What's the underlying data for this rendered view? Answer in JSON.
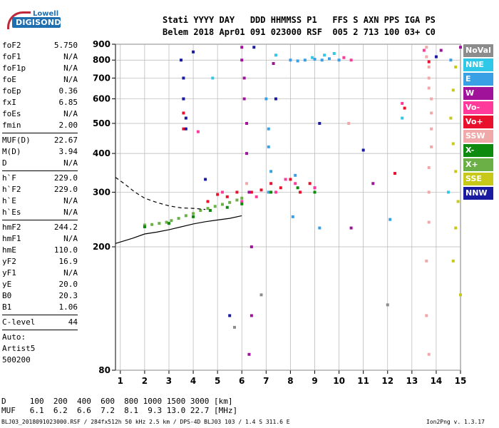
{
  "logo": {
    "line1": "Lowell",
    "line2": "DIGISONDE"
  },
  "header": {
    "line1": "Stati YYYY DAY   DDD HHMMSS P1   FFS S AXN PPS IGA PS",
    "line2": "Belem 2018 Apr01 091 023000 RSF  005 2 713 100 03+ C0"
  },
  "params_group1": [
    {
      "label": "foF2",
      "value": "5.750"
    },
    {
      "label": "foF1",
      "value": "N/A"
    },
    {
      "label": "foF1p",
      "value": "N/A"
    },
    {
      "label": "foE",
      "value": "N/A"
    },
    {
      "label": "foEp",
      "value": "0.36"
    },
    {
      "label": "fxI",
      "value": "6.85"
    },
    {
      "label": "foEs",
      "value": "N/A"
    },
    {
      "label": "fmin",
      "value": "2.00"
    }
  ],
  "params_group2": [
    {
      "label": "MUF(D)",
      "value": "22.67"
    },
    {
      "label": "M(D)",
      "value": "3.94"
    },
    {
      "label": "D",
      "value": "N/A"
    }
  ],
  "params_group3": [
    {
      "label": "h`F",
      "value": "229.0"
    },
    {
      "label": "h`F2",
      "value": "229.0"
    },
    {
      "label": "h`E",
      "value": "N/A"
    },
    {
      "label": "h`Es",
      "value": "N/A"
    }
  ],
  "params_group4": [
    {
      "label": "hmF2",
      "value": "244.2"
    },
    {
      "label": "hmF1",
      "value": "N/A"
    },
    {
      "label": "hmE",
      "value": "110.0"
    },
    {
      "label": "yF2",
      "value": "16.9"
    },
    {
      "label": "yF1",
      "value": "N/A"
    },
    {
      "label": "yE",
      "value": "20.0"
    },
    {
      "label": "B0",
      "value": "20.3"
    },
    {
      "label": "B1",
      "value": "1.06"
    }
  ],
  "clevel": {
    "label": "C-level",
    "value": "44"
  },
  "auto": [
    "Auto:",
    "Artist5",
    "500200"
  ],
  "legend": [
    {
      "label": "NoVal",
      "color": "#8c8c8c"
    },
    {
      "label": "NNE",
      "color": "#2fc8e8"
    },
    {
      "label": "E",
      "color": "#3aa0e6"
    },
    {
      "label": "W",
      "color": "#a0129a"
    },
    {
      "label": "Vo-",
      "color": "#ff3a9a"
    },
    {
      "label": "Vo+",
      "color": "#e8102c"
    },
    {
      "label": "SSW",
      "color": "#f0a8a8"
    },
    {
      "label": "X-",
      "color": "#0e8a0e"
    },
    {
      "label": "X+",
      "color": "#6ab046"
    },
    {
      "label": "SSE",
      "color": "#c8c818"
    },
    {
      "label": "NNW",
      "color": "#1a1aa0"
    }
  ],
  "footer": {
    "d_line": "D     100  200  400  600  800 1000 1500 3000 [km]",
    "muf_line": "MUF   6.1  6.2  6.6  7.2  8.1  9.3 13.0 22.7 [MHz]"
  },
  "fileinfo": "BLJ03_2018091023000.RSF / 284fx512h 50 kHz 2.5 km / DPS-4D BLJ03 103 / 1.4 S 311.6 E",
  "version": "Ion2Png v. 1.3.17",
  "chart_data": {
    "type": "scatter",
    "xlim": [
      0.8,
      15.0
    ],
    "ylim": [
      80,
      900
    ],
    "x_ticks": [
      1,
      2,
      3,
      4,
      5,
      6,
      7,
      8,
      9,
      10,
      11,
      12,
      13,
      14,
      15
    ],
    "y_ticks": [
      80,
      200,
      300,
      400,
      500,
      600,
      700,
      800,
      900
    ],
    "grid": true,
    "legend_position": "right",
    "series": [
      {
        "name": "X+",
        "points": [
          [
            2.0,
            235
          ],
          [
            2.3,
            236
          ],
          [
            2.6,
            238
          ],
          [
            2.9,
            240
          ],
          [
            3.1,
            243
          ],
          [
            3.4,
            247
          ],
          [
            3.7,
            252
          ],
          [
            4.0,
            256
          ],
          [
            4.3,
            262
          ],
          [
            4.6,
            266
          ],
          [
            4.9,
            270
          ],
          [
            5.2,
            274
          ],
          [
            5.5,
            278
          ],
          [
            5.8,
            283
          ],
          [
            6.0,
            287
          ]
        ]
      },
      {
        "name": "Vo+",
        "points": [
          [
            4.6,
            280
          ],
          [
            5.0,
            295
          ],
          [
            5.4,
            290
          ],
          [
            5.8,
            300
          ],
          [
            6.4,
            300
          ],
          [
            6.8,
            305
          ],
          [
            7.2,
            320
          ],
          [
            7.6,
            310
          ],
          [
            8.0,
            330
          ],
          [
            8.4,
            300
          ],
          [
            8.8,
            320
          ],
          [
            3.6,
            480
          ],
          [
            3.6,
            540
          ],
          [
            3.6,
            600
          ],
          [
            12.3,
            345
          ],
          [
            12.7,
            560
          ],
          [
            13.7,
            790
          ]
        ]
      },
      {
        "name": "SSW",
        "points": [
          [
            13.6,
            880
          ],
          [
            13.6,
            820
          ],
          [
            13.7,
            760
          ],
          [
            13.7,
            700
          ],
          [
            13.7,
            650
          ],
          [
            13.8,
            600
          ],
          [
            13.8,
            540
          ],
          [
            13.8,
            480
          ],
          [
            13.8,
            420
          ],
          [
            13.7,
            360
          ],
          [
            13.7,
            300
          ],
          [
            13.7,
            240
          ],
          [
            13.6,
            180
          ],
          [
            13.6,
            120
          ],
          [
            13.7,
            90
          ],
          [
            6.2,
            320
          ],
          [
            10.4,
            500
          ]
        ]
      },
      {
        "name": "E",
        "points": [
          [
            8.0,
            800
          ],
          [
            8.3,
            795
          ],
          [
            8.6,
            800
          ],
          [
            9.0,
            805
          ],
          [
            9.3,
            800
          ],
          [
            9.6,
            808
          ],
          [
            10.0,
            800
          ],
          [
            7.0,
            600
          ],
          [
            7.1,
            480
          ],
          [
            7.1,
            420
          ],
          [
            7.2,
            350
          ],
          [
            7.1,
            300
          ],
          [
            8.1,
            250
          ],
          [
            8.2,
            340
          ],
          [
            9.2,
            230
          ],
          [
            9.0,
            310
          ],
          [
            12.1,
            245
          ],
          [
            14.6,
            800
          ]
        ]
      },
      {
        "name": "W",
        "points": [
          [
            6.0,
            880
          ],
          [
            6.0,
            800
          ],
          [
            6.1,
            700
          ],
          [
            6.1,
            600
          ],
          [
            6.2,
            500
          ],
          [
            6.2,
            400
          ],
          [
            6.3,
            300
          ],
          [
            6.4,
            200
          ],
          [
            6.4,
            120
          ],
          [
            6.3,
            90
          ],
          [
            7.3,
            780
          ],
          [
            10.5,
            230
          ],
          [
            11.4,
            320
          ],
          [
            14.2,
            860
          ],
          [
            15.0,
            880
          ]
        ]
      },
      {
        "name": "Vo-",
        "points": [
          [
            5.2,
            300
          ],
          [
            6.0,
            280
          ],
          [
            6.6,
            290
          ],
          [
            7.4,
            300
          ],
          [
            7.8,
            330
          ],
          [
            8.2,
            320
          ],
          [
            9.0,
            310
          ],
          [
            10.2,
            815
          ],
          [
            10.5,
            800
          ],
          [
            4.2,
            470
          ],
          [
            12.6,
            580
          ],
          [
            13.5,
            860
          ]
        ]
      },
      {
        "name": "NNE",
        "points": [
          [
            7.4,
            830
          ],
          [
            8.9,
            815
          ],
          [
            9.4,
            830
          ],
          [
            9.8,
            840
          ],
          [
            4.8,
            700
          ],
          [
            12.6,
            520
          ],
          [
            14.5,
            300
          ]
        ]
      },
      {
        "name": "NNW",
        "points": [
          [
            3.5,
            800
          ],
          [
            3.6,
            700
          ],
          [
            3.6,
            600
          ],
          [
            3.7,
            520
          ],
          [
            3.7,
            480
          ],
          [
            4.0,
            850
          ],
          [
            6.5,
            880
          ],
          [
            7.4,
            600
          ],
          [
            9.2,
            500
          ],
          [
            11.0,
            410
          ],
          [
            14.0,
            820
          ],
          [
            4.5,
            330
          ],
          [
            5.5,
            120
          ]
        ]
      },
      {
        "name": "X-",
        "points": [
          [
            2.0,
            232
          ],
          [
            3.0,
            238
          ],
          [
            4.0,
            250
          ],
          [
            4.7,
            262
          ],
          [
            5.4,
            268
          ],
          [
            6.0,
            275
          ],
          [
            7.2,
            300
          ],
          [
            8.3,
            310
          ],
          [
            9.0,
            300
          ]
        ]
      },
      {
        "name": "SSE",
        "points": [
          [
            14.8,
            760
          ],
          [
            14.7,
            640
          ],
          [
            14.6,
            520
          ],
          [
            14.7,
            430
          ],
          [
            14.8,
            350
          ],
          [
            14.9,
            280
          ],
          [
            14.8,
            230
          ],
          [
            14.7,
            180
          ],
          [
            15.0,
            140
          ]
        ]
      },
      {
        "name": "NoVal",
        "points": [
          [
            5.7,
            110
          ],
          [
            6.8,
            140
          ],
          [
            12.0,
            130
          ]
        ]
      }
    ],
    "curves": [
      {
        "style": "solid",
        "points": [
          [
            0.8,
            205
          ],
          [
            1.5,
            213
          ],
          [
            2.0,
            220
          ],
          [
            2.5,
            223
          ],
          [
            3.0,
            227
          ],
          [
            3.5,
            232
          ],
          [
            4.0,
            237
          ],
          [
            4.5,
            241
          ],
          [
            5.0,
            244
          ],
          [
            5.5,
            247
          ],
          [
            6.0,
            252
          ]
        ]
      },
      {
        "style": "dashed",
        "points": [
          [
            0.8,
            335
          ],
          [
            1.2,
            318
          ],
          [
            1.6,
            300
          ],
          [
            2.0,
            287
          ],
          [
            2.5,
            278
          ],
          [
            3.0,
            271
          ],
          [
            3.5,
            267
          ],
          [
            4.0,
            266
          ],
          [
            4.5,
            264
          ]
        ]
      }
    ]
  }
}
